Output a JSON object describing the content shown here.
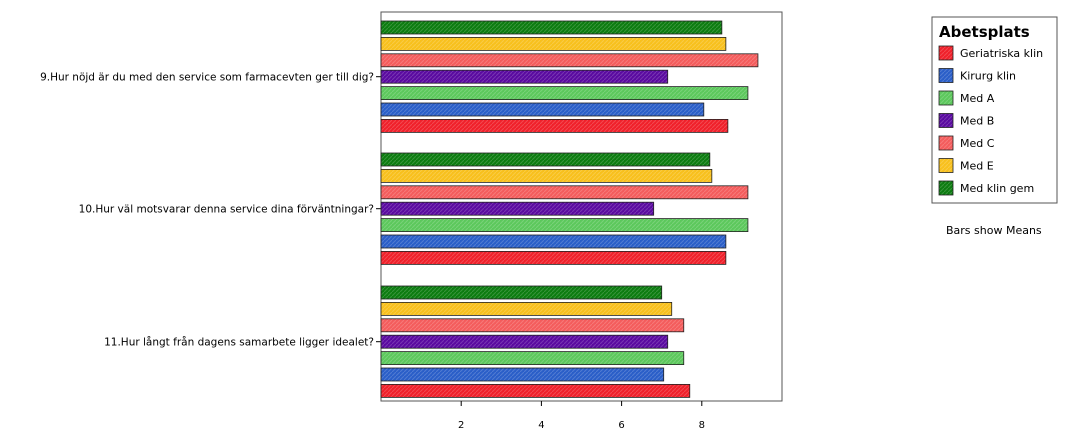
{
  "chart_data": {
    "type": "bar",
    "orientation": "horizontal",
    "categories": [
      "9.Hur nöjd är du med den service som farmacevten ger till dig?",
      "10.Hur väl motsvarar denna service dina förväntningar?",
      "11.Hur långt från dagens samarbete ligger idealet?"
    ],
    "series": [
      {
        "name": "Geriatriska klin",
        "color": "#f0202a",
        "values": [
          8.65,
          8.6,
          7.7
        ]
      },
      {
        "name": "Kirurg klin",
        "color": "#2a5ec8",
        "values": [
          8.05,
          8.6,
          7.05
        ]
      },
      {
        "name": "Med A",
        "color": "#5cc85c",
        "values": [
          9.15,
          9.15,
          7.55
        ]
      },
      {
        "name": "Med B",
        "color": "#5a0aa0",
        "values": [
          7.15,
          6.8,
          7.15
        ]
      },
      {
        "name": "Med C",
        "color": "#f45c5c",
        "values": [
          9.4,
          9.15,
          7.55
        ]
      },
      {
        "name": "Med E",
        "color": "#f8c01c",
        "values": [
          8.6,
          8.25,
          7.25
        ]
      },
      {
        "name": "Med klin gem",
        "color": "#0c7c10",
        "values": [
          8.5,
          8.2,
          7.0
        ]
      }
    ],
    "xticks": [
      2,
      4,
      6,
      8
    ],
    "xlim": [
      0,
      10.0
    ],
    "legend": {
      "title": "Abetsplats",
      "position": "right"
    },
    "note": "Bars show Means",
    "grid": false
  }
}
